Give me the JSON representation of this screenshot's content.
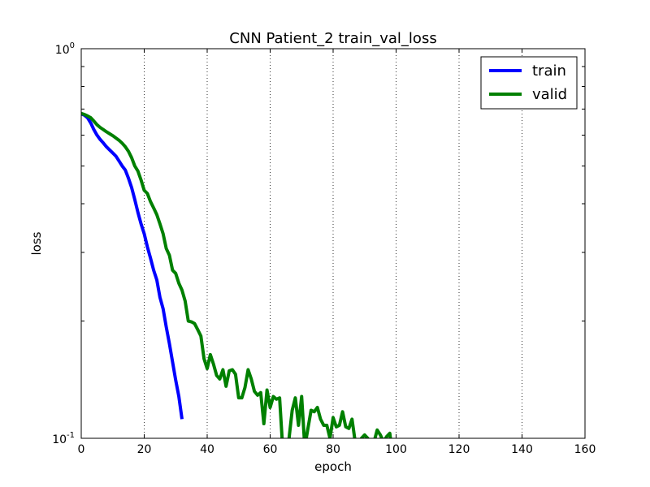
{
  "chart_data": {
    "type": "line",
    "title": "CNN Patient_2 train_val_loss",
    "xlabel": "epoch",
    "ylabel": "loss",
    "xlim": [
      0,
      160
    ],
    "ylim": [
      0.1,
      1.0
    ],
    "yscale": "log",
    "xticks": [
      0,
      20,
      40,
      60,
      80,
      100,
      120,
      140,
      160
    ],
    "yticks": [
      {
        "value": 0.1,
        "base": "10",
        "exp": "-1"
      },
      {
        "value": 1.0,
        "base": "10",
        "exp": "0"
      }
    ],
    "grid": "vertical-dotted",
    "legend_position": "top-right",
    "series": [
      {
        "name": "train",
        "color": "#0000ff",
        "x": [
          0,
          1,
          2,
          3,
          4,
          5,
          6,
          7,
          8,
          9,
          10,
          11,
          12,
          13,
          14,
          15,
          16,
          17,
          18,
          19,
          20,
          21,
          22,
          23,
          24,
          25,
          26,
          27,
          28,
          29,
          30,
          31,
          32
        ],
        "y": [
          0.68,
          0.675,
          0.665,
          0.645,
          0.62,
          0.6,
          0.585,
          0.573,
          0.56,
          0.55,
          0.54,
          0.53,
          0.515,
          0.5,
          0.488,
          0.465,
          0.44,
          0.41,
          0.38,
          0.355,
          0.335,
          0.31,
          0.29,
          0.27,
          0.255,
          0.23,
          0.215,
          0.193,
          0.175,
          0.157,
          0.141,
          0.128,
          0.112
        ]
      },
      {
        "name": "valid",
        "color": "#008000",
        "x": [
          0,
          1,
          2,
          3,
          4,
          5,
          6,
          7,
          8,
          9,
          10,
          11,
          12,
          13,
          14,
          15,
          16,
          17,
          18,
          19,
          20,
          21,
          22,
          23,
          24,
          25,
          26,
          27,
          28,
          29,
          30,
          31,
          32,
          33,
          34,
          35,
          36,
          37,
          38,
          39,
          40,
          41,
          42,
          43,
          44,
          45,
          46,
          47,
          48,
          49,
          50,
          51,
          52,
          53,
          54,
          55,
          56,
          57,
          58,
          59,
          60,
          61,
          62,
          63,
          64,
          65,
          66,
          67,
          68,
          69,
          70,
          71,
          72,
          73,
          74,
          75,
          76,
          77,
          78,
          79,
          80,
          81,
          82,
          83,
          84,
          85,
          86,
          87,
          88,
          89,
          90,
          91,
          92,
          93,
          94,
          95,
          96,
          97,
          98,
          99
        ],
        "y": [
          0.682,
          0.678,
          0.672,
          0.665,
          0.652,
          0.638,
          0.628,
          0.62,
          0.612,
          0.605,
          0.598,
          0.59,
          0.582,
          0.572,
          0.56,
          0.545,
          0.525,
          0.5,
          0.485,
          0.46,
          0.433,
          0.425,
          0.405,
          0.39,
          0.375,
          0.355,
          0.335,
          0.307,
          0.295,
          0.27,
          0.265,
          0.25,
          0.24,
          0.225,
          0.2,
          0.199,
          0.197,
          0.19,
          0.183,
          0.16,
          0.151,
          0.164,
          0.155,
          0.145,
          0.142,
          0.15,
          0.136,
          0.149,
          0.15,
          0.146,
          0.127,
          0.127,
          0.135,
          0.15,
          0.142,
          0.132,
          0.129,
          0.131,
          0.109,
          0.133,
          0.12,
          0.128,
          0.126,
          0.127,
          0.094,
          0.092,
          0.1,
          0.118,
          0.127,
          0.108,
          0.128,
          0.095,
          0.106,
          0.118,
          0.117,
          0.12,
          0.112,
          0.108,
          0.108,
          0.1,
          0.113,
          0.107,
          0.108,
          0.117,
          0.107,
          0.106,
          0.112,
          0.098,
          0.094,
          0.1,
          0.102,
          0.1,
          0.094,
          0.098,
          0.105,
          0.102,
          0.098,
          0.101,
          0.103,
          0.089
        ]
      }
    ]
  }
}
